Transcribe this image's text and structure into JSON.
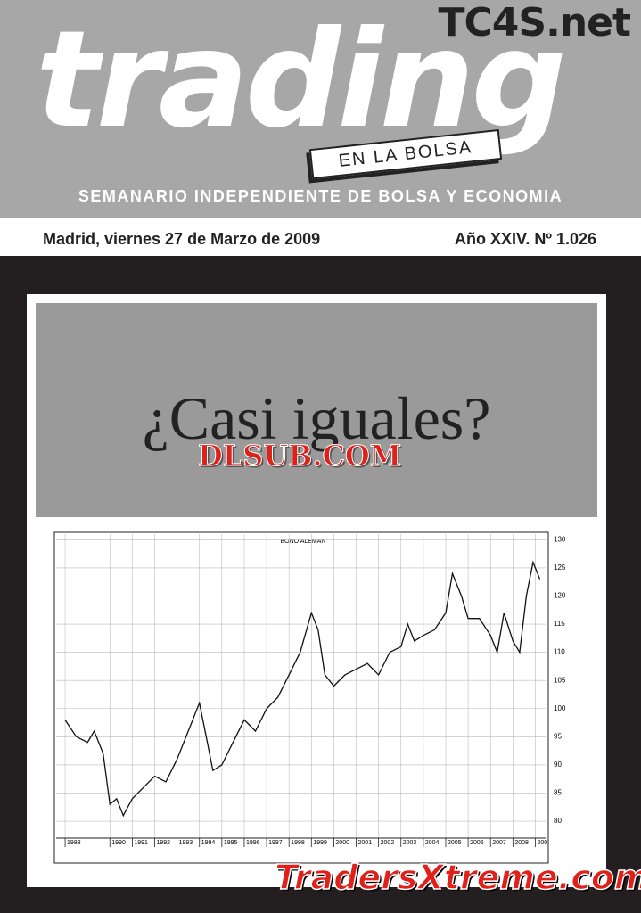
{
  "header": {
    "site": "TC4S.net",
    "masthead": "trading",
    "badge": "EN LA BOLSA",
    "subtitle": "SEMANARIO INDEPENDIENTE DE BOLSA Y ECONOMIA",
    "date": "Madrid, viernes 27 de Marzo de 2009",
    "issue": "Año XXIV. Nº 1.026"
  },
  "headline": "¿Casi iguales?",
  "watermarks": [
    "DLSUB.COM",
    "TradersXtreme.com"
  ],
  "chart_data": {
    "type": "line",
    "title": "BONO ALEMAN",
    "color": "#111111",
    "grid": true,
    "x": [
      1988.0,
      1988.5,
      1989.0,
      1989.3,
      1989.7,
      1990.0,
      1990.3,
      1990.6,
      1991.0,
      1991.5,
      1992.0,
      1992.5,
      1993.0,
      1993.5,
      1994.0,
      1994.3,
      1994.6,
      1995.0,
      1995.5,
      1996.0,
      1996.5,
      1997.0,
      1997.5,
      1998.0,
      1998.5,
      1999.0,
      1999.3,
      1999.6,
      2000.0,
      2000.5,
      2001.0,
      2001.5,
      2002.0,
      2002.5,
      2003.0,
      2003.3,
      2003.6,
      2004.0,
      2004.5,
      2005.0,
      2005.3,
      2005.7,
      2006.0,
      2006.5,
      2007.0,
      2007.3,
      2007.6,
      2008.0,
      2008.3,
      2008.6,
      2008.9,
      2009.2
    ],
    "values": [
      98,
      95,
      94,
      96,
      92,
      83,
      84,
      81,
      84,
      86,
      88,
      87,
      91,
      96,
      101,
      95,
      89,
      90,
      94,
      98,
      96,
      100,
      102,
      106,
      110,
      117,
      114,
      106,
      104,
      106,
      107,
      108,
      106,
      110,
      111,
      115,
      112,
      113,
      114,
      117,
      124,
      120,
      116,
      116,
      113,
      110,
      117,
      112,
      110,
      120,
      126,
      123
    ],
    "xlim": [
      1987.6,
      2009.5
    ],
    "xticks": [
      1988,
      1990,
      1991,
      1992,
      1993,
      1994,
      1995,
      1996,
      1997,
      1998,
      1999,
      2000,
      2001,
      2002,
      2003,
      2004,
      2005,
      2006,
      2007,
      2008,
      {
        "value": 2009,
        "label": "200"
      }
    ],
    "ylim": [
      77,
      131
    ],
    "yticks": [
      80,
      85,
      90,
      95,
      100,
      105,
      110,
      115,
      120,
      125,
      130
    ]
  }
}
